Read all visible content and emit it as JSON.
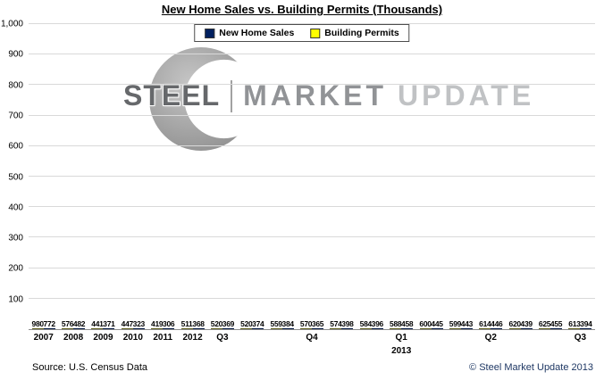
{
  "title": "New Home Sales vs. Building Permits (Thousands)",
  "watermark": {
    "steel": "STEEL",
    "market": "MARKET",
    "update": "UPDATE"
  },
  "footer": {
    "source": "Source: U.S. Census Data",
    "copyright": "© Steel Market Update 2013",
    "copyright_color": "#1f3864"
  },
  "chart_data": {
    "type": "bar",
    "title": "New Home Sales vs. Building Permits (Thousands)",
    "xlabel": "",
    "ylabel": "",
    "ylim": [
      0,
      1000
    ],
    "ytick_step": 100,
    "grid": true,
    "legend_position": "top-center",
    "series": [
      {
        "id": "new_home_sales",
        "name": "New Home Sales",
        "color": "#002060",
        "value_key": "sales"
      },
      {
        "id": "building_permits",
        "name": "Building Permits",
        "color": "#ffff00",
        "value_key": "permits"
      }
    ],
    "bar_order": [
      "building_permits",
      "new_home_sales"
    ],
    "groups": [
      {
        "label": "2007",
        "permits": 980,
        "sales": 772
      },
      {
        "label": "2008",
        "permits": 576,
        "sales": 482
      },
      {
        "label": "2009",
        "permits": 441,
        "sales": 371
      },
      {
        "label": "2010",
        "permits": 447,
        "sales": 323
      },
      {
        "label": "2011",
        "permits": 419,
        "sales": 306
      },
      {
        "label": "2012",
        "permits": 511,
        "sales": 368
      },
      {
        "label": "Q3",
        "permits": 520,
        "sales": 369
      },
      {
        "label": "",
        "permits": 520,
        "sales": 374
      },
      {
        "label": "",
        "permits": 559,
        "sales": 384
      },
      {
        "label": "Q4",
        "permits": 570,
        "sales": 365
      },
      {
        "label": "",
        "permits": 574,
        "sales": 398
      },
      {
        "label": "",
        "permits": 584,
        "sales": 396
      },
      {
        "label": "Q1",
        "sublabel": "2013",
        "permits": 588,
        "sales": 458
      },
      {
        "label": "",
        "permits": 600,
        "sales": 445
      },
      {
        "label": "",
        "permits": 599,
        "sales": 443
      },
      {
        "label": "Q2",
        "permits": 614,
        "sales": 446
      },
      {
        "label": "",
        "permits": 620,
        "sales": 439
      },
      {
        "label": "",
        "permits": 625,
        "sales": 455
      },
      {
        "label": "Q3",
        "permits": 613,
        "sales": 394
      }
    ]
  }
}
